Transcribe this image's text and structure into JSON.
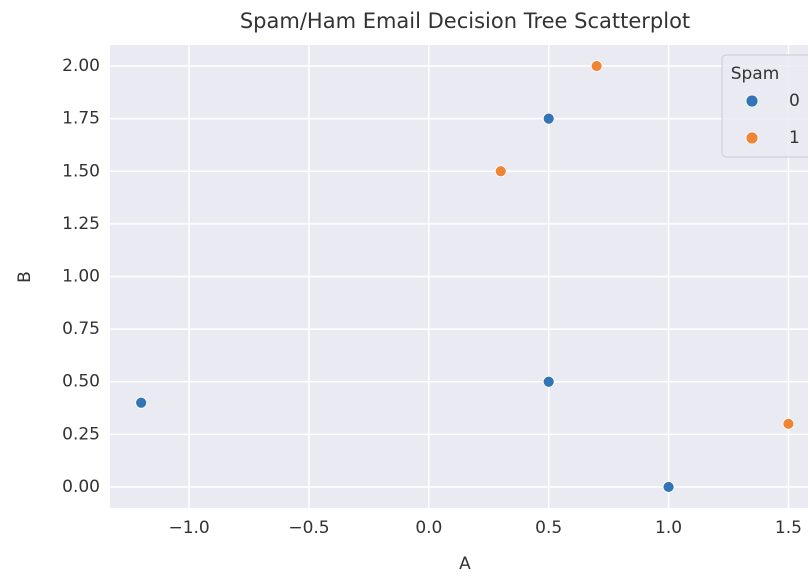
{
  "chart_data": {
    "type": "scatter",
    "title": "Spam/Ham Email Decision Tree Scatterplot",
    "x_label": "A",
    "y_label": "B",
    "legend_title": "Spam",
    "legend_position": "upper right",
    "grid": true,
    "background": "#eaeaf2",
    "series": [
      {
        "name": "0",
        "color": "#3274b5",
        "x": [
          0.5,
          -1.2,
          0.5,
          1.0
        ],
        "values": [
          1.75,
          0.4,
          0.5,
          0.0
        ]
      },
      {
        "name": "1",
        "color": "#ef8532",
        "x": [
          0.7,
          0.3,
          1.5
        ],
        "values": [
          2.0,
          1.5,
          0.3
        ]
      }
    ],
    "xlim": [
      -1.33,
      1.64
    ],
    "ylim": [
      -0.1,
      2.1
    ],
    "xticks": [
      {
        "value": -1.0,
        "label": "−1.0"
      },
      {
        "value": -0.5,
        "label": "−0.5"
      },
      {
        "value": 0.0,
        "label": "0.0"
      },
      0.5,
      {
        "value": 1.0,
        "label": "1.0"
      },
      1.5
    ],
    "yticks": [
      {
        "value": 0,
        "label": "0.00"
      },
      {
        "value": 0.25,
        "label": "0.25"
      },
      {
        "value": 0.5,
        "label": "0.50"
      },
      {
        "value": 0.75,
        "label": "0.75"
      },
      {
        "value": 1,
        "label": "1.00"
      },
      {
        "value": 1.25,
        "label": "1.25"
      },
      {
        "value": 1.5,
        "label": "1.50"
      },
      {
        "value": 1.75,
        "label": "1.75"
      },
      {
        "value": 2,
        "label": "2.00"
      }
    ]
  }
}
